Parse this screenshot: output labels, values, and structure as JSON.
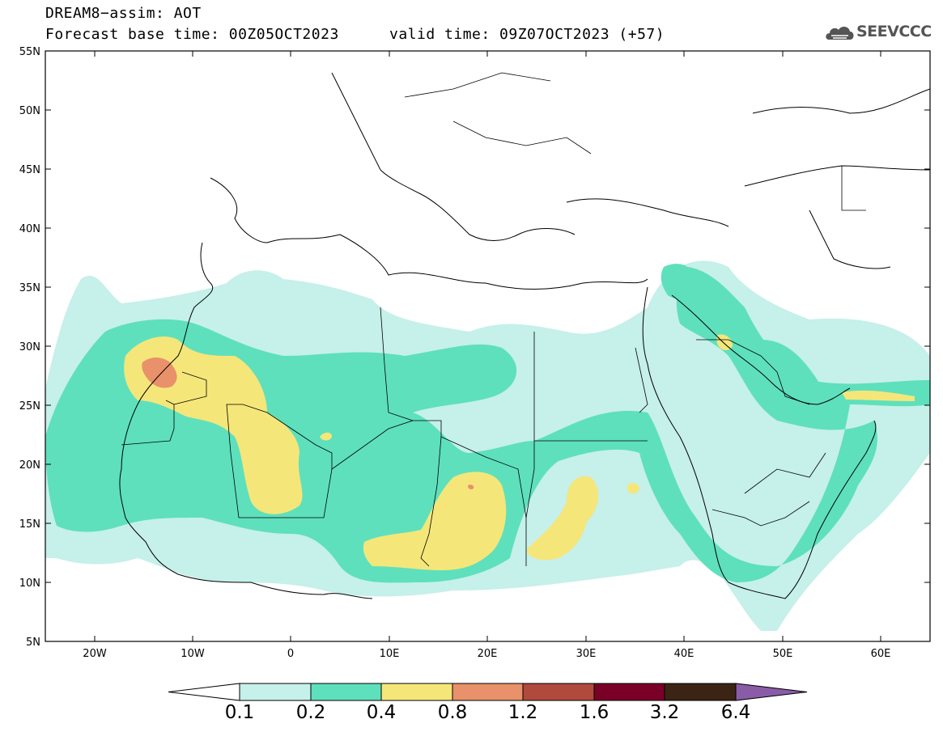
{
  "title": {
    "line1": "DREAM8−assim: AOT",
    "line2": "Forecast base time: 00Z05OCT2023",
    "valid": "valid time: 09Z07OCT2023 (+57)"
  },
  "logo": {
    "text": "SEEVCCC",
    "icon": "cloud-logo-icon"
  },
  "map": {
    "lat_range": [
      5,
      55
    ],
    "lon_range": [
      -25,
      65
    ],
    "lat_ticks": [
      "55N",
      "50N",
      "45N",
      "40N",
      "35N",
      "30N",
      "25N",
      "20N",
      "15N",
      "10N",
      "5N"
    ],
    "lon_ticks": [
      "20W",
      "10W",
      "0",
      "10E",
      "20E",
      "30E",
      "40E",
      "50E",
      "60E"
    ]
  },
  "legend": {
    "colors": [
      "#c6f0ea",
      "#5ee0bc",
      "#f5e67a",
      "#e8916a",
      "#b04a3c",
      "#7a0028",
      "#3b2414",
      "#8a5ca8"
    ],
    "labels": [
      "0.1",
      "0.2",
      "0.4",
      "0.8",
      "1.2",
      "1.6",
      "3.2",
      "6.4"
    ]
  }
}
